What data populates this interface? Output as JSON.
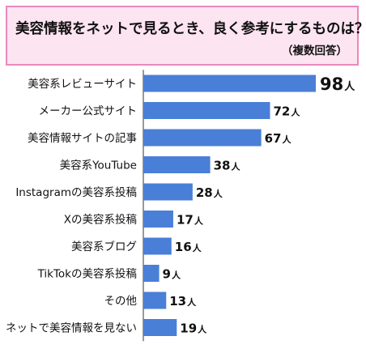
{
  "header": {
    "title": "美容情報をネットで見るとき、良く参考にするものは？",
    "subtitle": "（複数回答）"
  },
  "colors": {
    "bar": "#4a7fd8",
    "title_background": "#fce4f0",
    "title_border": "#e889bd",
    "axis_line": "#333333"
  },
  "chart_data": {
    "type": "bar",
    "orientation": "horizontal",
    "title": "美容情報をネットで見るとき、良く参考にするものは？",
    "subtitle": "（複数回答）",
    "categories": [
      "美容系レビューサイト",
      "メーカー公式サイト",
      "美容情報サイトの記事",
      "美容系YouTube",
      "Instagramの美容系投稿",
      "Xの美容系投稿",
      "美容系ブログ",
      "TikTokの美容系投稿",
      "その他",
      "ネットで美容情報を見ない"
    ],
    "values": [
      98,
      72,
      67,
      38,
      28,
      17,
      16,
      9,
      13,
      19
    ],
    "unit": "人",
    "xlim": [
      0,
      100
    ],
    "grid": false,
    "legend": "none"
  }
}
